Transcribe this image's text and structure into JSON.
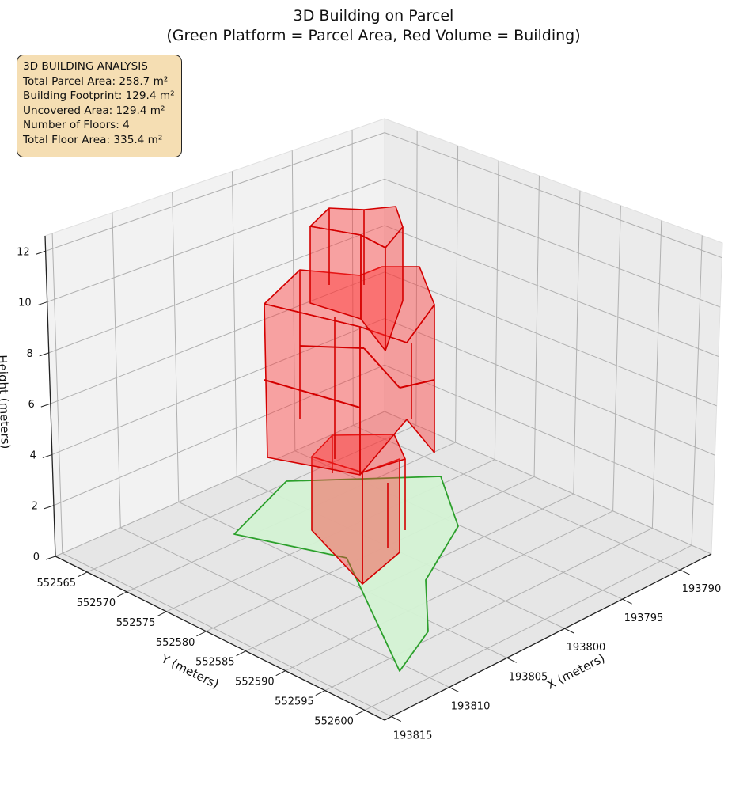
{
  "chart_data": {
    "type": "3d-polygons",
    "title": "3D Building on Parcel",
    "subtitle": "(Green Platform = Parcel Area, Red Volume = Building)",
    "xlabel": "X (meters)",
    "ylabel": "Y (meters)",
    "zlabel": "Height (meters)",
    "x_ticks": [
      "193790",
      "193795",
      "193800",
      "193805",
      "193810",
      "193815"
    ],
    "y_ticks": [
      "552565",
      "552570",
      "552575",
      "552580",
      "552585",
      "552590",
      "552595",
      "552600"
    ],
    "z_ticks": [
      "0",
      "2",
      "4",
      "6",
      "8",
      "10",
      "12"
    ],
    "grid": true,
    "colors": {
      "parcel_fill": "#d4f2d4",
      "parcel_edge": "#2ca02c",
      "building_fill": "#ff3333",
      "building_edge": "#d40000",
      "info_bg": "#f5deb3"
    },
    "annotation": {
      "lines": [
        "3D BUILDING ANALYSIS",
        "Total Parcel Area: 258.7 m²",
        "Building Footprint: 129.4 m²",
        "Uncovered Area: 129.4 m²",
        "Number of Floors: 4",
        "Total Floor Area: 335.4 m²"
      ]
    },
    "stats": {
      "total_parcel_area_m2": 258.7,
      "building_footprint_m2": 129.4,
      "uncovered_area_m2": 129.4,
      "number_of_floors": 4,
      "total_floor_area_m2": 335.4
    }
  }
}
